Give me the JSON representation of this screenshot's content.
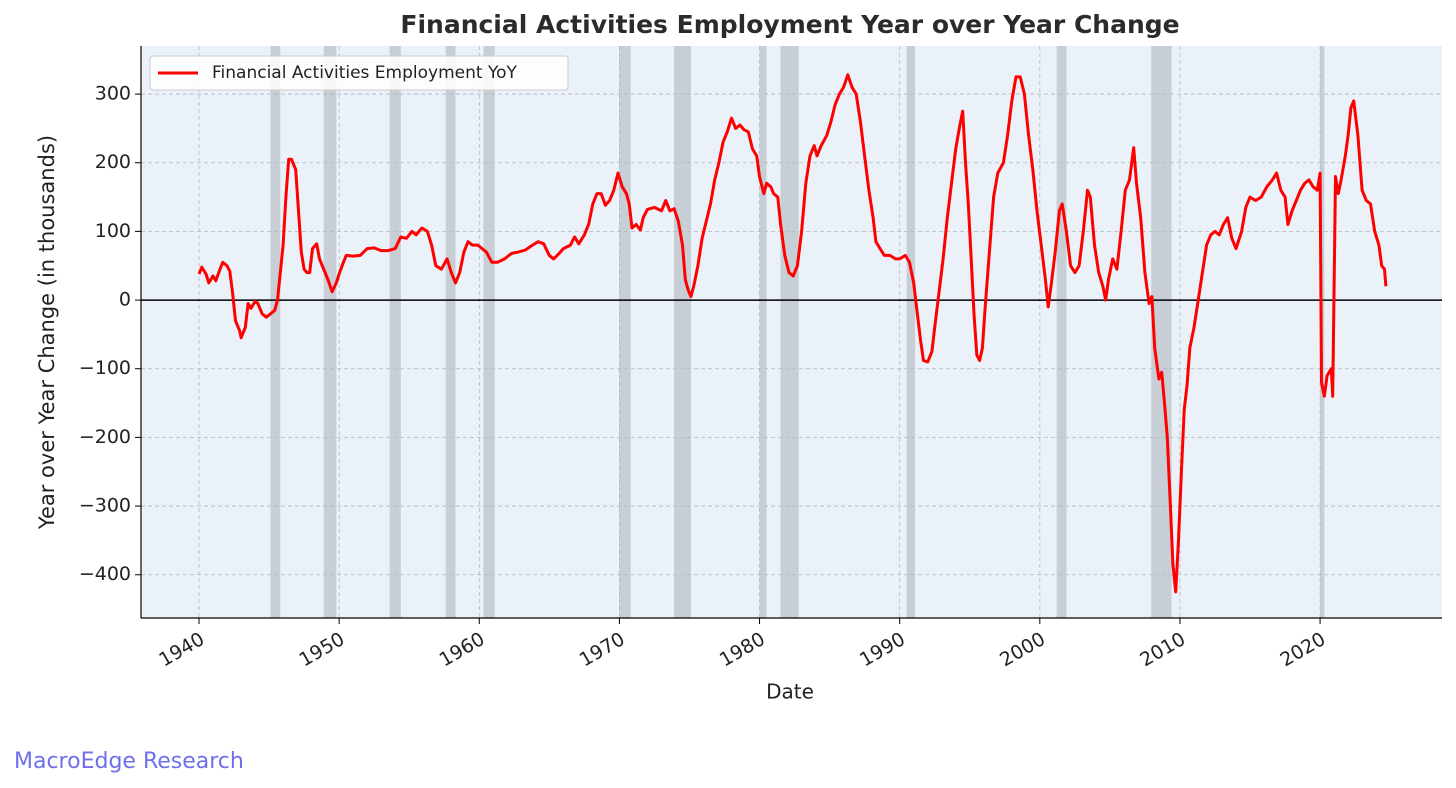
{
  "chart_data": {
    "type": "line",
    "title": "Financial Activities Employment Year over Year Change",
    "xlabel": "Date",
    "ylabel": "Year over Year Change (in thousands)",
    "source": "MacroEdge Research",
    "legend": "upper left",
    "grid": true,
    "background": "#eaf1f8",
    "xlim": [
      1935.86,
      2028.7
    ],
    "xticks": [
      1940,
      1950,
      1960,
      1970,
      1980,
      1990,
      2000,
      2010,
      2020
    ],
    "ylim": [
      -463,
      370
    ],
    "yticks": [
      {
        "value": -400,
        "label": "−400"
      },
      {
        "value": -300,
        "label": "−300"
      },
      {
        "value": -200,
        "label": "−200"
      },
      {
        "value": -100,
        "label": "−100"
      },
      0,
      100,
      200,
      300
    ],
    "recession_color": "#a3abb2",
    "recessions": [
      [
        1945.1,
        1945.8
      ],
      [
        1948.9,
        1949.8
      ],
      [
        1953.6,
        1954.4
      ],
      [
        1957.6,
        1958.3
      ],
      [
        1960.3,
        1961.1
      ],
      [
        1969.98,
        1970.8
      ],
      [
        1973.9,
        1975.1
      ],
      [
        1980.0,
        1980.5
      ],
      [
        1981.5,
        1982.8
      ],
      [
        1990.5,
        1991.1
      ],
      [
        2001.2,
        2001.9
      ],
      [
        2007.95,
        2009.4
      ],
      [
        2020.0,
        2020.3
      ]
    ],
    "x": [
      1940.0,
      1940.2,
      1940.5,
      1940.7,
      1941.0,
      1941.2,
      1941.5,
      1941.7,
      1942.0,
      1942.2,
      1942.4,
      1942.6,
      1942.9,
      1943.0,
      1943.3,
      1943.5,
      1943.7,
      1944.0,
      1944.2,
      1944.5,
      1944.8,
      1945.1,
      1945.4,
      1945.6,
      1945.8,
      1946.0,
      1946.2,
      1946.4,
      1946.6,
      1946.9,
      1947.1,
      1947.3,
      1947.5,
      1947.7,
      1947.9,
      1948.1,
      1948.4,
      1948.6,
      1948.9,
      1949.2,
      1949.5,
      1949.8,
      1950.0,
      1950.3,
      1950.5,
      1951.0,
      1951.5,
      1952.0,
      1952.5,
      1953.0,
      1953.5,
      1954.0,
      1954.4,
      1954.8,
      1955.2,
      1955.5,
      1955.9,
      1956.3,
      1956.6,
      1956.9,
      1957.3,
      1957.7,
      1958.0,
      1958.3,
      1958.6,
      1958.9,
      1959.2,
      1959.5,
      1959.9,
      1960.2,
      1960.5,
      1960.9,
      1961.3,
      1961.8,
      1962.3,
      1962.8,
      1963.3,
      1963.8,
      1964.2,
      1964.6,
      1965.0,
      1965.3,
      1965.7,
      1966.0,
      1966.5,
      1966.8,
      1967.1,
      1967.5,
      1967.8,
      1968.1,
      1968.4,
      1968.7,
      1969.0,
      1969.3,
      1969.6,
      1969.9,
      1970.2,
      1970.5,
      1970.7,
      1970.9,
      1971.2,
      1971.5,
      1971.7,
      1972.0,
      1972.5,
      1973.0,
      1973.3,
      1973.6,
      1973.9,
      1974.2,
      1974.5,
      1974.7,
      1974.9,
      1975.1,
      1975.3,
      1975.6,
      1975.9,
      1976.2,
      1976.5,
      1976.8,
      1977.1,
      1977.4,
      1977.7,
      1978.0,
      1978.3,
      1978.6,
      1978.9,
      1979.2,
      1979.5,
      1979.8,
      1980.0,
      1980.3,
      1980.5,
      1980.8,
      1981.0,
      1981.3,
      1981.5,
      1981.8,
      1982.1,
      1982.4,
      1982.7,
      1983.0,
      1983.3,
      1983.6,
      1983.9,
      1984.1,
      1984.4,
      1984.8,
      1985.1,
      1985.4,
      1985.7,
      1986.0,
      1986.3,
      1986.6,
      1986.9,
      1987.2,
      1987.5,
      1987.8,
      1988.1,
      1988.3,
      1988.6,
      1988.9,
      1989.3,
      1989.7,
      1990.0,
      1990.4,
      1990.7,
      1991.0,
      1991.2,
      1991.5,
      1991.7,
      1992.0,
      1992.3,
      1992.5,
      1992.8,
      1993.1,
      1993.4,
      1993.7,
      1994.0,
      1994.3,
      1994.5,
      1994.7,
      1994.9,
      1995.1,
      1995.3,
      1995.5,
      1995.7,
      1995.9,
      1996.1,
      1996.4,
      1996.7,
      1997.0,
      1997.4,
      1997.7,
      1998.0,
      1998.3,
      1998.6,
      1998.9,
      1999.2,
      1999.5,
      1999.8,
      2000.1,
      2000.4,
      2000.6,
      2000.8,
      2001.1,
      2001.4,
      2001.6,
      2001.9,
      2002.2,
      2002.5,
      2002.8,
      2003.1,
      2003.4,
      2003.6,
      2003.9,
      2004.2,
      2004.5,
      2004.7,
      2004.9,
      2005.2,
      2005.5,
      2005.8,
      2006.1,
      2006.4,
      2006.7,
      2006.9,
      2007.2,
      2007.5,
      2007.8,
      2008.0,
      2008.2,
      2008.5,
      2008.7,
      2008.9,
      2009.1,
      2009.3,
      2009.5,
      2009.7,
      2009.9,
      2010.1,
      2010.3,
      2010.5,
      2010.7,
      2011.0,
      2011.3,
      2011.6,
      2011.9,
      2012.2,
      2012.5,
      2012.8,
      2013.1,
      2013.4,
      2013.7,
      2014.0,
      2014.4,
      2014.7,
      2015.0,
      2015.4,
      2015.8,
      2016.2,
      2016.6,
      2016.9,
      2017.2,
      2017.5,
      2017.7,
      2018.0,
      2018.3,
      2018.6,
      2018.9,
      2019.2,
      2019.5,
      2019.8,
      2020.0,
      2020.1,
      2020.3,
      2020.5,
      2020.8,
      2020.9,
      2021.1,
      2021.3,
      2021.5,
      2021.8,
      2022.0,
      2022.2,
      2022.4,
      2022.7,
      2023.0,
      2023.3,
      2023.6,
      2023.9,
      2024.2,
      2024.4,
      2024.6,
      2024.7
    ],
    "series": [
      {
        "name": "Financial Activities Employment YoY",
        "color": "#ff0000",
        "values": [
          38,
          48,
          38,
          25,
          35,
          28,
          45,
          55,
          50,
          42,
          10,
          -30,
          -45,
          -55,
          -40,
          -5,
          -12,
          -2,
          -5,
          -20,
          -25,
          -20,
          -15,
          0,
          40,
          80,
          150,
          205,
          205,
          190,
          130,
          70,
          45,
          40,
          40,
          75,
          82,
          60,
          45,
          30,
          12,
          25,
          38,
          55,
          65,
          64,
          65,
          75,
          76,
          72,
          72,
          75,
          92,
          90,
          100,
          95,
          105,
          100,
          80,
          50,
          45,
          60,
          40,
          25,
          40,
          70,
          85,
          80,
          80,
          75,
          70,
          55,
          55,
          60,
          68,
          70,
          73,
          80,
          85,
          82,
          65,
          60,
          68,
          75,
          80,
          92,
          82,
          95,
          110,
          140,
          155,
          155,
          138,
          145,
          160,
          185,
          165,
          155,
          140,
          105,
          110,
          102,
          120,
          132,
          135,
          130,
          145,
          130,
          133,
          115,
          80,
          30,
          15,
          5,
          20,
          50,
          90,
          115,
          140,
          175,
          200,
          230,
          245,
          265,
          250,
          255,
          248,
          245,
          220,
          210,
          180,
          155,
          170,
          165,
          155,
          150,
          110,
          65,
          40,
          35,
          50,
          100,
          170,
          210,
          225,
          210,
          225,
          240,
          260,
          285,
          300,
          310,
          328,
          310,
          300,
          260,
          210,
          160,
          120,
          85,
          75,
          65,
          65,
          60,
          60,
          65,
          55,
          25,
          -10,
          -60,
          -88,
          -90,
          -75,
          -40,
          10,
          60,
          120,
          170,
          220,
          255,
          275,
          200,
          140,
          60,
          -20,
          -80,
          -88,
          -70,
          -10,
          70,
          150,
          185,
          200,
          240,
          290,
          325,
          325,
          300,
          240,
          190,
          130,
          80,
          30,
          -10,
          20,
          70,
          130,
          140,
          100,
          50,
          40,
          50,
          100,
          160,
          150,
          80,
          40,
          20,
          0,
          30,
          60,
          45,
          100,
          160,
          175,
          222,
          170,
          120,
          40,
          -5,
          5,
          -70,
          -115,
          -105,
          -150,
          -200,
          -290,
          -385,
          -425,
          -350,
          -250,
          -160,
          -125,
          -70,
          -40,
          0,
          40,
          80,
          95,
          100,
          95,
          110,
          120,
          90,
          75,
          100,
          135,
          150,
          145,
          150,
          165,
          175,
          185,
          160,
          150,
          110,
          130,
          145,
          160,
          170,
          175,
          165,
          160,
          185,
          -120,
          -140,
          -110,
          -100,
          -140,
          180,
          155,
          175,
          210,
          240,
          280,
          290,
          240,
          160,
          145,
          140,
          100,
          80,
          50,
          45,
          20
        ]
      }
    ]
  }
}
